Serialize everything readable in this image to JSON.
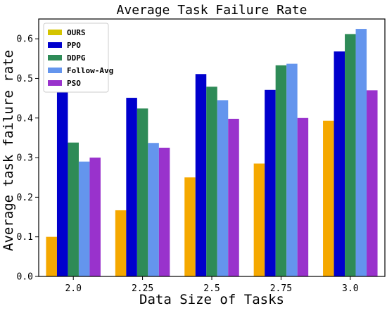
{
  "chart_data": {
    "type": "bar",
    "title": "Average Task Failure Rate",
    "xlabel": "Data Size of Tasks",
    "ylabel": "Average task failure rate",
    "categories": [
      "2.0",
      "2.25",
      "2.5",
      "2.75",
      "3.0"
    ],
    "ylim": [
      0,
      0.65
    ],
    "yticks": [
      "0.0",
      "0.1",
      "0.2",
      "0.3",
      "0.4",
      "0.5",
      "0.6"
    ],
    "legend_position": "top-left",
    "grid": false,
    "series": [
      {
        "name": "OURS",
        "color": "#f5a800",
        "legend_color": "#d4c400",
        "values": [
          0.1,
          0.167,
          0.25,
          0.285,
          0.393
        ]
      },
      {
        "name": "PPO",
        "color": "#0000cd",
        "values": [
          0.483,
          0.451,
          0.511,
          0.471,
          0.568
        ]
      },
      {
        "name": "DDPG",
        "color": "#2e8b57",
        "values": [
          0.338,
          0.424,
          0.479,
          0.533,
          0.612
        ]
      },
      {
        "name": "Follow-Avg",
        "color": "#6495ed",
        "values": [
          0.29,
          0.337,
          0.445,
          0.537,
          0.625
        ]
      },
      {
        "name": "PSO",
        "color": "#9932cc",
        "values": [
          0.3,
          0.325,
          0.398,
          0.4,
          0.47
        ]
      }
    ]
  }
}
